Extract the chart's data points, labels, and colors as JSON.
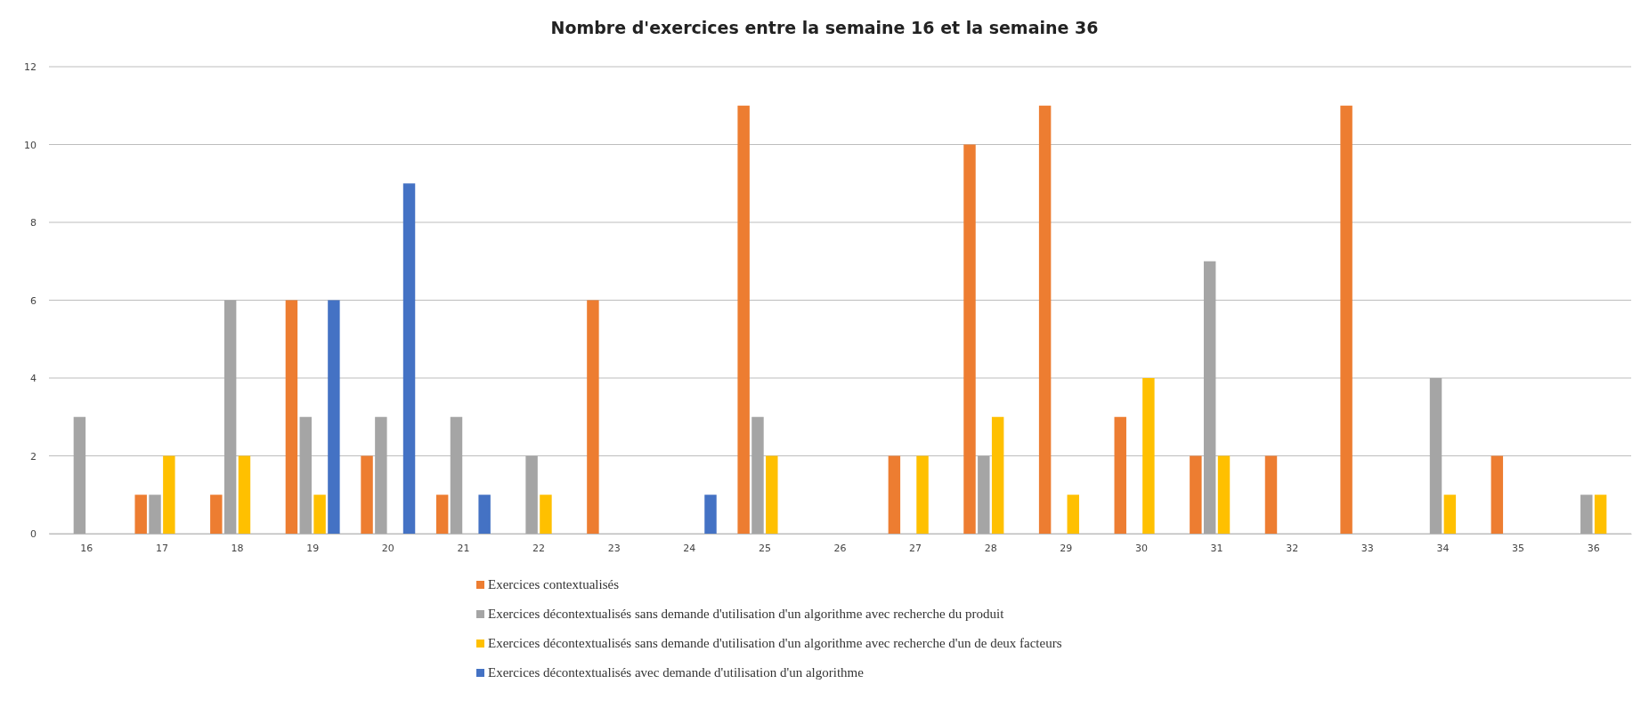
{
  "chart_data": {
    "type": "bar",
    "title": "Nombre d'exercices entre la semaine 16 et la semaine 36",
    "categories": [
      "16",
      "17",
      "18",
      "19",
      "20",
      "21",
      "22",
      "23",
      "24",
      "25",
      "26",
      "27",
      "28",
      "29",
      "30",
      "31",
      "32",
      "33",
      "34",
      "35",
      "36"
    ],
    "series": [
      {
        "name": "Exercices contextualisés",
        "color": "#ed7d31",
        "values": [
          0,
          1,
          1,
          6,
          2,
          1,
          0,
          6,
          0,
          11,
          0,
          2,
          10,
          11,
          3,
          2,
          2,
          11,
          0,
          2,
          0
        ]
      },
      {
        "name": "Exercices décontextualisés sans demande d'utilisation d'un algorithme avec recherche du produit",
        "color": "#a5a5a5",
        "values": [
          3,
          1,
          6,
          3,
          3,
          3,
          2,
          0,
          0,
          3,
          0,
          0,
          2,
          0,
          0,
          7,
          0,
          0,
          4,
          0,
          1
        ]
      },
      {
        "name": "Exercices décontextualisés sans demande d'utilisation d'un algorithme avec recherche d'un de deux facteurs",
        "color": "#ffc000",
        "values": [
          0,
          2,
          2,
          1,
          0,
          0,
          1,
          0,
          0,
          2,
          0,
          2,
          3,
          1,
          4,
          2,
          0,
          0,
          1,
          0,
          1
        ]
      },
      {
        "name": "Exercices décontextualisés avec demande d'utilisation d'un algorithme",
        "color": "#4472c4",
        "values": [
          0,
          0,
          0,
          6,
          9,
          1,
          0,
          0,
          1,
          0,
          0,
          0,
          0,
          0,
          0,
          0,
          0,
          0,
          0,
          0,
          0
        ]
      }
    ],
    "ylim": [
      0,
      12
    ],
    "yticks": [
      0,
      2,
      4,
      6,
      8,
      10,
      12
    ],
    "grid": "y",
    "legend": "bottom"
  }
}
